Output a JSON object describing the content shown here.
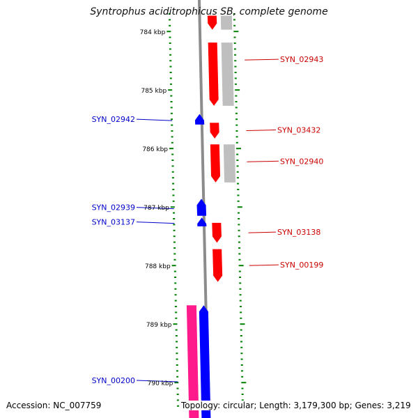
{
  "title": "Syntrophus aciditrophicus SB, complete genome",
  "footer": {
    "accession": "Accession: NC_007759",
    "topology": "Topology: circular; Length: 3,179,300 bp; Genes: 3,219"
  },
  "colors": {
    "backbone": "#8c8c8c",
    "forward_cds": "#ff0000",
    "reverse_cds": "#0000ff",
    "gene_feature_forward": "#bfbfbf",
    "gene_feature_reverse": "#ff1a8c",
    "ticks": "#008000",
    "forward_label": "#cc0000",
    "reverse_label": "#0000cc"
  },
  "position_labels": [
    {
      "label": "784 kbp",
      "kbp": 784
    },
    {
      "label": "785 kbp",
      "kbp": 785
    },
    {
      "label": "786 kbp",
      "kbp": 786
    },
    {
      "label": "787 kbp",
      "kbp": 787
    },
    {
      "label": "788 kbp",
      "kbp": 788
    },
    {
      "label": "789 kbp",
      "kbp": 789
    },
    {
      "label": "790 kbp",
      "kbp": 790
    }
  ],
  "forward_genes": [
    {
      "name": "",
      "start_kbp": 783.72,
      "end_kbp": 783.96,
      "gene_feature": true
    },
    {
      "name": "SYN_02943",
      "start_kbp": 784.18,
      "end_kbp": 785.26,
      "gene_feature": true
    },
    {
      "name": "SYN_03432",
      "start_kbp": 785.55,
      "end_kbp": 785.82,
      "gene_feature": false
    },
    {
      "name": "SYN_02940",
      "start_kbp": 785.92,
      "end_kbp": 786.57,
      "gene_feature": true
    },
    {
      "name": "SYN_03138",
      "start_kbp": 787.26,
      "end_kbp": 787.6,
      "gene_feature": false
    },
    {
      "name": "SYN_00199",
      "start_kbp": 787.71,
      "end_kbp": 788.27,
      "gene_feature": false
    }
  ],
  "reverse_genes": [
    {
      "name": "SYN_02942",
      "start_kbp": 785.4,
      "end_kbp": 785.58,
      "gene_feature": false
    },
    {
      "name": "SYN_02939",
      "start_kbp": 786.85,
      "end_kbp": 787.14,
      "gene_feature": false
    },
    {
      "name": "SYN_03137",
      "start_kbp": 787.17,
      "end_kbp": 787.32,
      "gene_feature": false
    },
    {
      "name": "SYN_00200",
      "start_kbp": 788.67,
      "end_kbp": 790.6,
      "gene_feature": true
    }
  ]
}
